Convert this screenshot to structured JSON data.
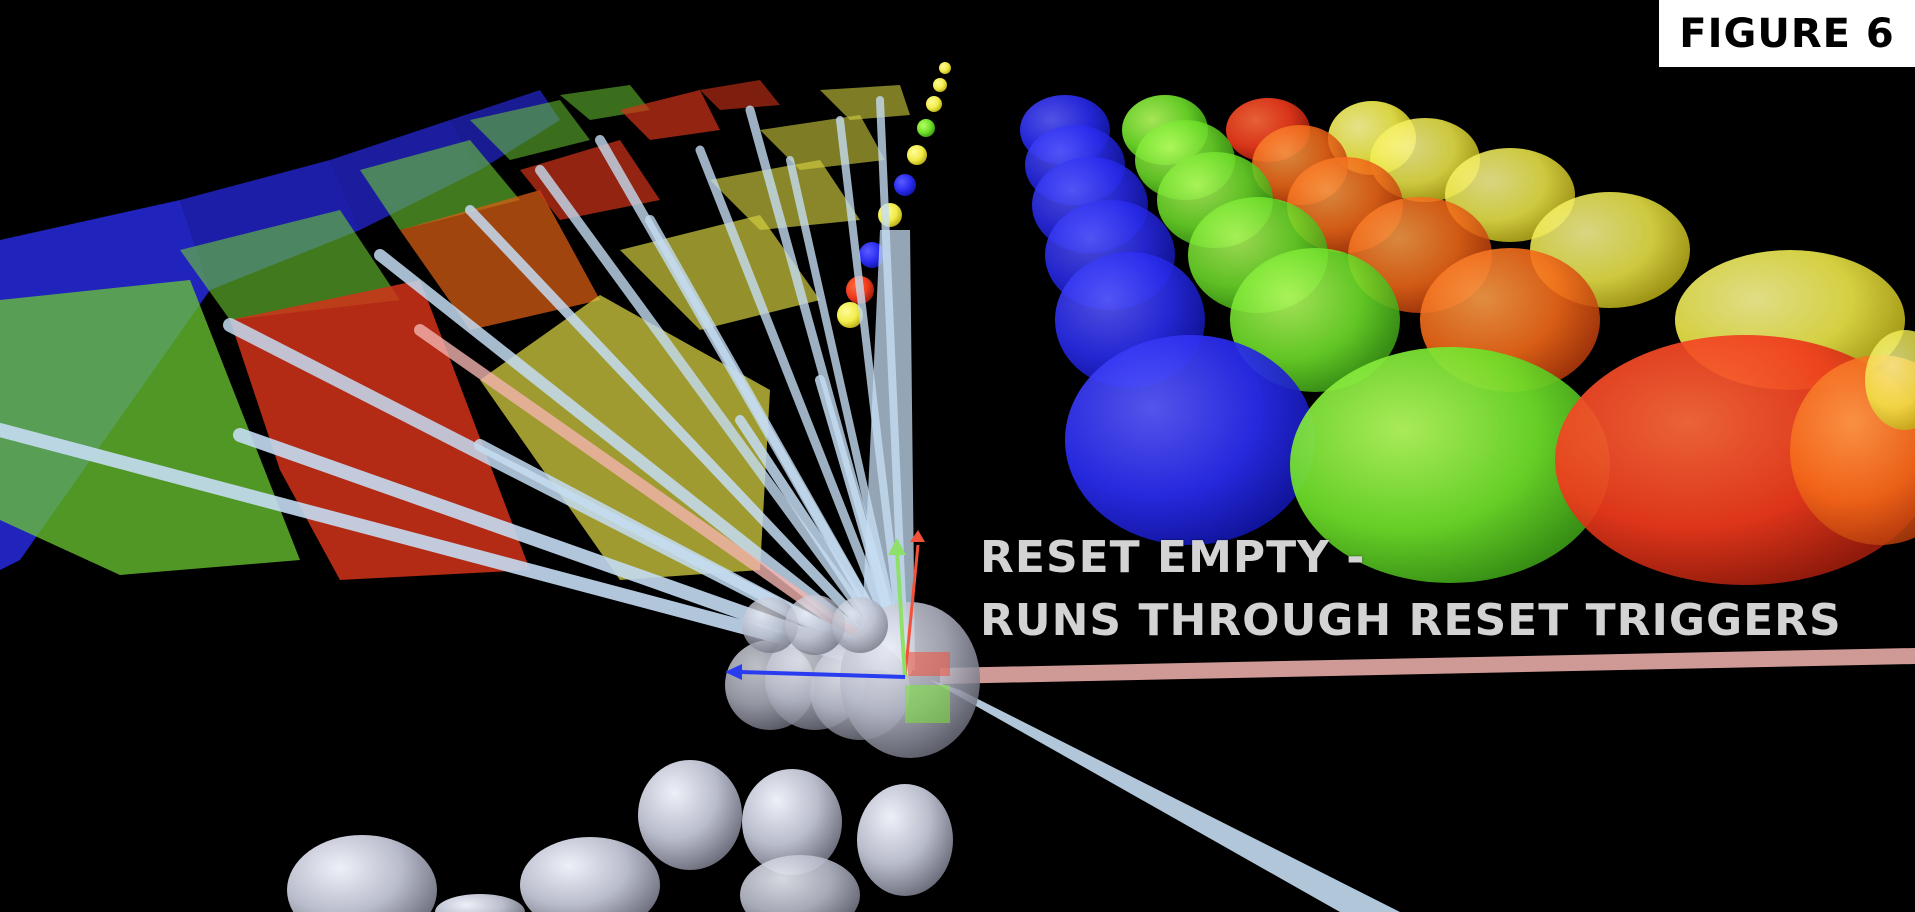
{
  "figure_label": "FIGURE 6",
  "caption": {
    "line1": "RESET EMPTY -",
    "line2": "RUNS THROUGH RESET TRIGGERS"
  },
  "colors": {
    "background": "#000000",
    "blue": "#2a2cf0",
    "green": "#6fe12a",
    "red": "#f03a1c",
    "orange": "#f56a18",
    "yellow": "#f1ec4a",
    "light_blue_ray": "#c5dcf2",
    "gray_sphere": "#b9bccb",
    "pink_ray": "#f3b4b0"
  },
  "icons": {
    "gizmo": "transform-gizmo-icon"
  }
}
